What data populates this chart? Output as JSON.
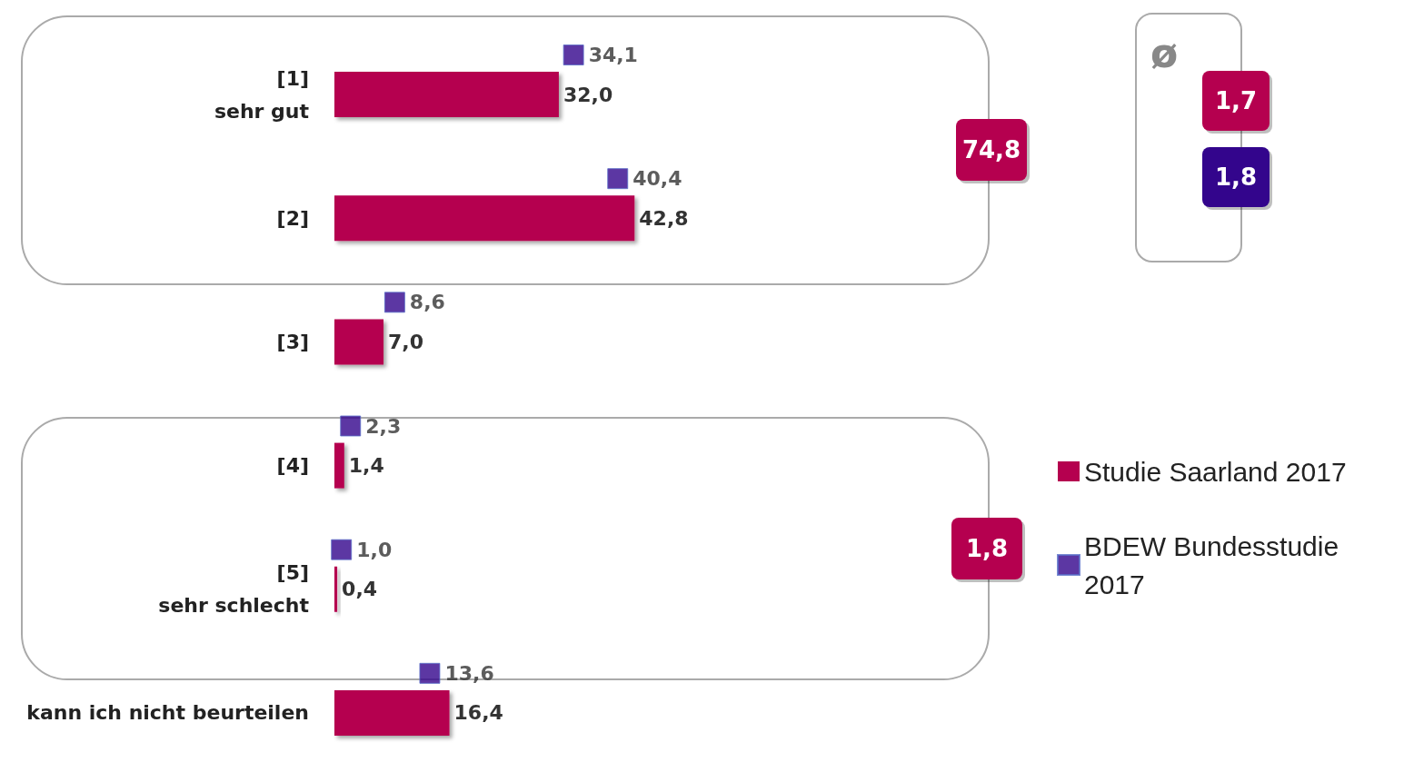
{
  "chart_data": {
    "type": "bar",
    "orientation": "horizontal",
    "categories": [
      "[1]\nsehr gut",
      "[2]",
      "[3]",
      "[4]",
      "[5]\nsehr schlecht",
      "kann ich nicht beurteilen"
    ],
    "series": [
      {
        "name": "Studie Saarland 2017",
        "type": "bar",
        "color": "#b5004f",
        "values": [
          32.0,
          42.8,
          7.0,
          1.4,
          0.4,
          16.4
        ],
        "value_labels": [
          "32,0",
          "42,8",
          "7,0",
          "1,4",
          "0,4",
          "16,4"
        ]
      },
      {
        "name": "BDEW Bundesstudie 2017",
        "type": "scatter",
        "color": "#33058c",
        "values": [
          34.1,
          40.4,
          8.6,
          2.3,
          1.0,
          13.6
        ],
        "value_labels": [
          "34,1",
          "40,4",
          "8,6",
          "2,3",
          "1,0",
          "13,6"
        ]
      }
    ],
    "marker": "square",
    "legend": "right",
    "annotations": [
      "74,8",
      "1,8",
      "ø",
      "1,7",
      "1,8"
    ]
  }
}
